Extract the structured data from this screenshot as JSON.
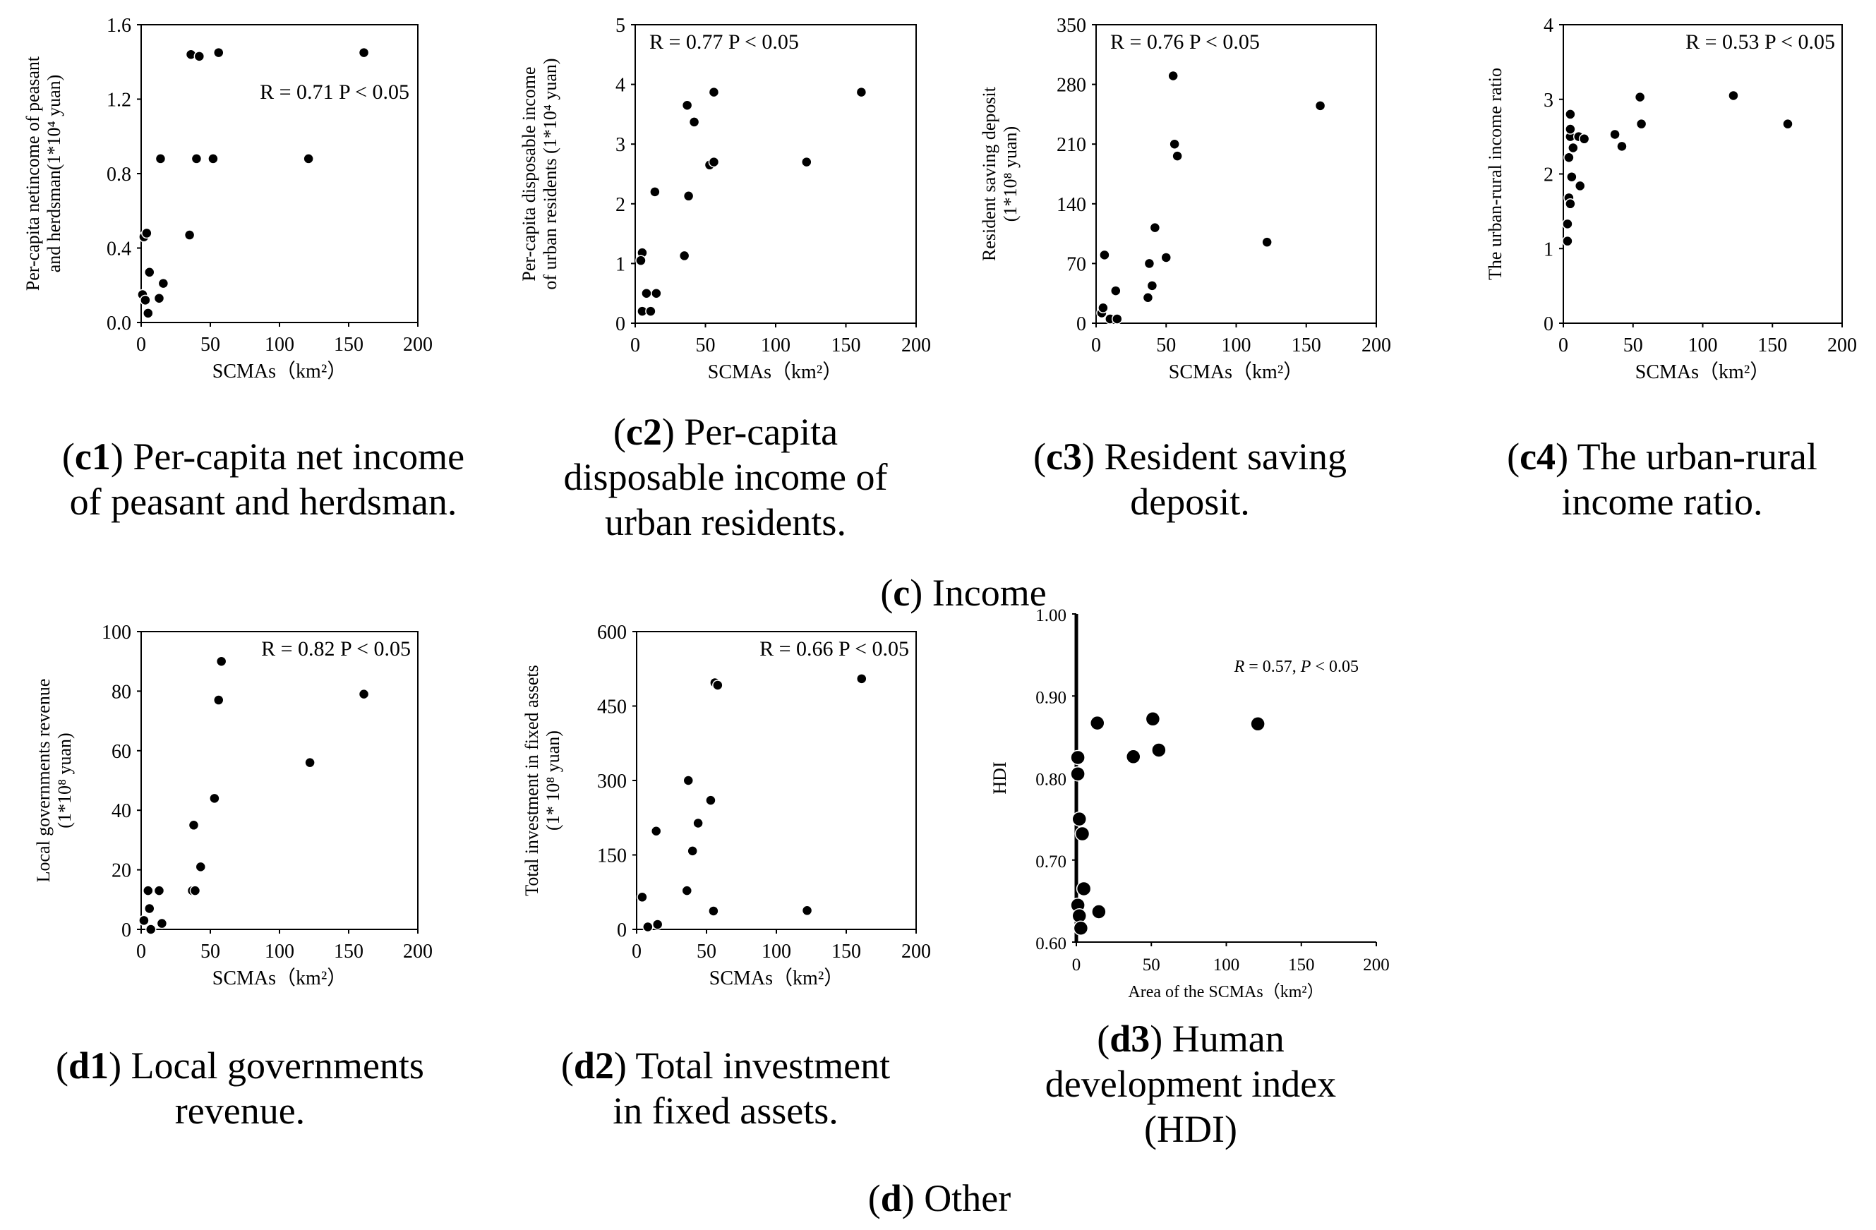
{
  "groups": {
    "c": {
      "letter": "c",
      "label": ") Income"
    },
    "d": {
      "letter": "d",
      "label": ") Other"
    }
  },
  "chart_data": [
    {
      "id": "c1",
      "type": "scatter",
      "ylabel_line1": "Per-capita netincome of peasant",
      "ylabel_line2": "and herdsman(1*10⁴ yuan)",
      "xlabel": "SCMAs（km²）",
      "xlim": [
        0,
        200
      ],
      "ylim": [
        0,
        1.6
      ],
      "xticks": [
        "0",
        "50",
        "100",
        "150",
        "200"
      ],
      "yticks": [
        "0.0",
        "0.4",
        "0.8",
        "1.2",
        "1.6"
      ],
      "annotation": "R = 0.71  P < 0.05",
      "annotation_pos": "middle-right",
      "points": [
        [
          2,
          0.46
        ],
        [
          4,
          0.48
        ],
        [
          1,
          0.15
        ],
        [
          3,
          0.12
        ],
        [
          5,
          0.05
        ],
        [
          6,
          0.27
        ],
        [
          13,
          0.13
        ],
        [
          16,
          0.21
        ],
        [
          14,
          0.88
        ],
        [
          35,
          0.47
        ],
        [
          36,
          1.44
        ],
        [
          42,
          1.43
        ],
        [
          40,
          0.88
        ],
        [
          52,
          0.88
        ],
        [
          56,
          1.45
        ],
        [
          121,
          0.88
        ],
        [
          161,
          1.45
        ]
      ],
      "caption_letter": "c1",
      "caption_lines": [
        ") Per-capita net income",
        "of peasant and herdsman."
      ]
    },
    {
      "id": "c2",
      "type": "scatter",
      "ylabel_line1": "Per-capita disposable income",
      "ylabel_line2": "of urban residents (1*10⁴ yuan)",
      "xlabel": "SCMAs（km²）",
      "xlim": [
        0,
        200
      ],
      "ylim": [
        0,
        5
      ],
      "xticks": [
        "0",
        "50",
        "100",
        "150",
        "200"
      ],
      "yticks": [
        "0",
        "1",
        "2",
        "3",
        "4",
        "5"
      ],
      "annotation": "R = 0.77  P < 0.05",
      "annotation_pos": "top-left",
      "points": [
        [
          5,
          1.18
        ],
        [
          4,
          1.05
        ],
        [
          5,
          0.2
        ],
        [
          8,
          0.5
        ],
        [
          11,
          0.2
        ],
        [
          15,
          0.5
        ],
        [
          14,
          2.2
        ],
        [
          38,
          2.13
        ],
        [
          35,
          1.13
        ],
        [
          37,
          3.65
        ],
        [
          42,
          3.37
        ],
        [
          53,
          2.65
        ],
        [
          56,
          2.7
        ],
        [
          56,
          3.87
        ],
        [
          122,
          2.7
        ],
        [
          161,
          3.87
        ]
      ],
      "caption_letter": "c2",
      "caption_lines": [
        ") Per-capita",
        "disposable income of",
        "urban residents."
      ]
    },
    {
      "id": "c3",
      "type": "scatter",
      "ylabel_line1": "Resident saving deposit",
      "ylabel_line2": "(1*10⁸ yuan)",
      "xlabel": "SCMAs（km²）",
      "xlim": [
        0,
        200
      ],
      "ylim": [
        0,
        350
      ],
      "xticks": [
        "0",
        "50",
        "100",
        "150",
        "200"
      ],
      "yticks": [
        "0",
        "70",
        "140",
        "210",
        "280",
        "350"
      ],
      "annotation": "R = 0.76  P < 0.05",
      "annotation_pos": "top-left",
      "points": [
        [
          4,
          12
        ],
        [
          5,
          18
        ],
        [
          6,
          80
        ],
        [
          10,
          5
        ],
        [
          14,
          38
        ],
        [
          15,
          5
        ],
        [
          37,
          30
        ],
        [
          38,
          70
        ],
        [
          40,
          44
        ],
        [
          42,
          112
        ],
        [
          50,
          77
        ],
        [
          55,
          290
        ],
        [
          56,
          210
        ],
        [
          58,
          196
        ],
        [
          122,
          95
        ],
        [
          160,
          255
        ]
      ],
      "caption_letter": "c3",
      "caption_lines": [
        ") Resident saving",
        "deposit."
      ]
    },
    {
      "id": "c4",
      "type": "scatter",
      "ylabel_line1": "The urban-rural income ratio",
      "ylabel_line2": "",
      "xlabel": "SCMAs（km²）",
      "xlim": [
        0,
        200
      ],
      "ylim": [
        0,
        4
      ],
      "xticks": [
        "0",
        "50",
        "100",
        "150",
        "200"
      ],
      "yticks": [
        "0",
        "1",
        "2",
        "3",
        "4"
      ],
      "annotation": "R = 0.53  P < 0.05",
      "annotation_pos": "top-right",
      "points": [
        [
          3,
          1.1
        ],
        [
          3,
          1.33
        ],
        [
          4,
          1.68
        ],
        [
          5,
          1.6
        ],
        [
          6,
          1.96
        ],
        [
          4,
          2.22
        ],
        [
          7,
          2.35
        ],
        [
          5,
          2.5
        ],
        [
          5,
          2.6
        ],
        [
          5,
          2.8
        ],
        [
          11,
          2.5
        ],
        [
          15,
          2.47
        ],
        [
          12,
          1.84
        ],
        [
          37,
          2.53
        ],
        [
          42,
          2.37
        ],
        [
          55,
          3.03
        ],
        [
          56,
          2.67
        ],
        [
          122,
          3.05
        ],
        [
          161,
          2.67
        ]
      ],
      "caption_letter": "c4",
      "caption_lines": [
        ") The urban-rural",
        "income ratio."
      ]
    },
    {
      "id": "d1",
      "type": "scatter",
      "ylabel_line1": "Local governments revenue",
      "ylabel_line2": "(1*10⁸ yuan)",
      "xlabel": "SCMAs（km²）",
      "xlim": [
        0,
        200
      ],
      "ylim": [
        0,
        100
      ],
      "xticks": [
        "0",
        "50",
        "100",
        "150",
        "200"
      ],
      "yticks": [
        "0",
        "20",
        "40",
        "60",
        "80",
        "100"
      ],
      "annotation": "R = 0.82  P < 0.05",
      "annotation_pos": "top-right",
      "points": [
        [
          2,
          3
        ],
        [
          5,
          13
        ],
        [
          6,
          7
        ],
        [
          7,
          0
        ],
        [
          13,
          13
        ],
        [
          15,
          2
        ],
        [
          37,
          13
        ],
        [
          39,
          13
        ],
        [
          38,
          35
        ],
        [
          43,
          21
        ],
        [
          53,
          44
        ],
        [
          56,
          77
        ],
        [
          58,
          90
        ],
        [
          122,
          56
        ],
        [
          161,
          79
        ]
      ],
      "caption_letter": "d1",
      "caption_lines": [
        ") Local governments",
        "revenue."
      ]
    },
    {
      "id": "d2",
      "type": "scatter",
      "ylabel_line1": "Total investment in fixed assets",
      "ylabel_line2": "(1* 10⁸ yuan)",
      "xlabel": "SCMAs（km²）",
      "xlim": [
        0,
        200
      ],
      "ylim": [
        0,
        600
      ],
      "xticks": [
        "0",
        "50",
        "100",
        "150",
        "200"
      ],
      "yticks": [
        "0",
        "150",
        "300",
        "450",
        "600"
      ],
      "annotation": "R = 0.66  P < 0.05",
      "annotation_pos": "top-right",
      "points": [
        [
          4,
          65
        ],
        [
          8,
          5
        ],
        [
          15,
          10
        ],
        [
          14,
          198
        ],
        [
          37,
          300
        ],
        [
          36,
          78
        ],
        [
          40,
          158
        ],
        [
          44,
          214
        ],
        [
          53,
          260
        ],
        [
          55,
          37
        ],
        [
          56,
          497
        ],
        [
          58,
          492
        ],
        [
          122,
          38
        ],
        [
          161,
          505
        ]
      ],
      "caption_letter": "d2",
      "caption_lines": [
        ") Total investment",
        "in fixed assets."
      ]
    },
    {
      "id": "d3",
      "type": "scatter",
      "ylabel_line1": "HDI",
      "ylabel_line2": "",
      "xlabel": "Area of the SCMAs（km²）",
      "xlim": [
        0,
        200
      ],
      "ylim": [
        0.6,
        1.0
      ],
      "xticks": [
        "0",
        "50",
        "100",
        "150",
        "200"
      ],
      "yticks": [
        "0.60",
        "0.70",
        "0.80",
        "0.90",
        "1.00"
      ],
      "annotation_r": "R",
      "annotation_r_rest": " = 0.57,  ",
      "annotation_p": "P",
      "annotation_p_rest": " <  0.05",
      "annotation_pos": "top-right",
      "points": [
        [
          1,
          0.825
        ],
        [
          1,
          0.805
        ],
        [
          2,
          0.75
        ],
        [
          4,
          0.732
        ],
        [
          5,
          0.665
        ],
        [
          1,
          0.645
        ],
        [
          2,
          0.632
        ],
        [
          3,
          0.617
        ],
        [
          14,
          0.867
        ],
        [
          15,
          0.637
        ],
        [
          38,
          0.826
        ],
        [
          51,
          0.872
        ],
        [
          55,
          0.834
        ],
        [
          121,
          0.866
        ]
      ],
      "caption_letter": "d3",
      "caption_lines": [
        ") Human",
        "development index",
        "(HDI)"
      ]
    }
  ]
}
